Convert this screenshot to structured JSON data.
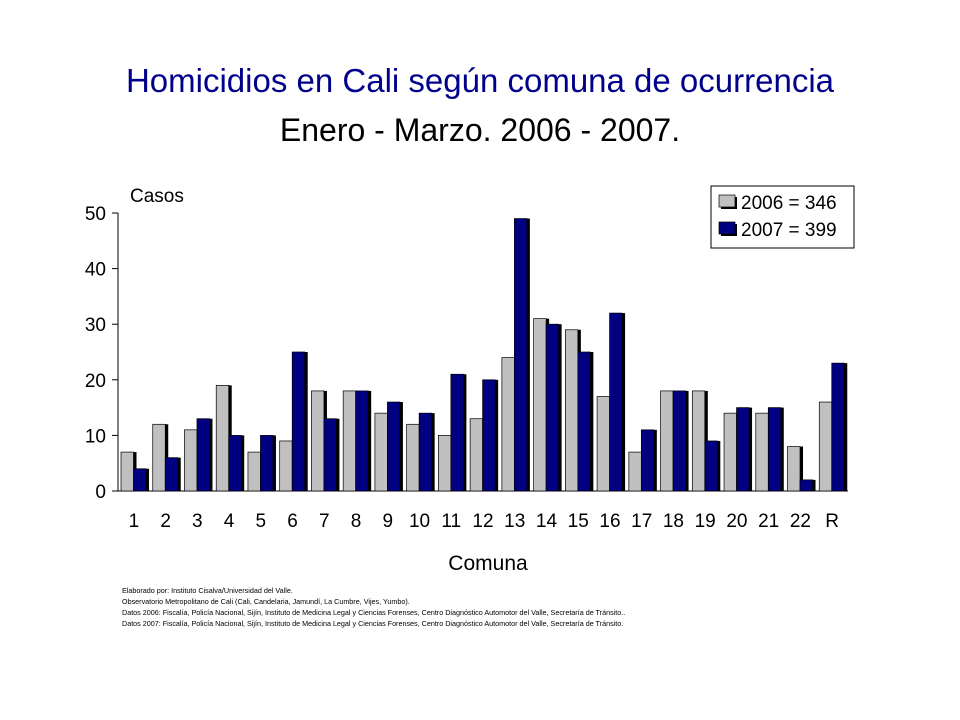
{
  "title": "Homicidios en Cali según comuna de ocurrencia",
  "subtitle": "Enero - Marzo.  2006 - 2007.",
  "chart_data": {
    "type": "bar",
    "ylabel": "Casos",
    "xlabel": "Comuna",
    "ylim": [
      0,
      50
    ],
    "yticks": [
      0,
      10,
      20,
      30,
      40,
      50
    ],
    "grid": false,
    "legend_position": "top-right",
    "categories": [
      "1",
      "2",
      "3",
      "4",
      "5",
      "6",
      "7",
      "8",
      "9",
      "10",
      "11",
      "12",
      "13",
      "14",
      "15",
      "16",
      "17",
      "18",
      "19",
      "20",
      "21",
      "22",
      "R"
    ],
    "series": [
      {
        "name": "2006 = 346",
        "color": "#c0c0c0",
        "values": [
          7,
          12,
          11,
          19,
          7,
          9,
          18,
          18,
          14,
          12,
          10,
          13,
          24,
          31,
          29,
          17,
          7,
          18,
          18,
          14,
          14,
          8,
          16
        ]
      },
      {
        "name": "2007 = 399",
        "color": "#000080",
        "values": [
          4,
          6,
          13,
          10,
          10,
          25,
          13,
          18,
          16,
          14,
          21,
          20,
          49,
          30,
          25,
          32,
          11,
          18,
          9,
          15,
          15,
          2,
          23
        ]
      }
    ]
  },
  "footnotes": [
    "Elaborado por: Instituto Cisalva/Universidad del Valle.",
    "Observatorio Metropolitano de Cali (Cali, Candelaria, Jamundí, La Cumbre, Vijes, Yumbo).",
    "Datos 2006: Fiscalía, Policía Nacional, Sijín,  Instituto de Medicina Legal  y Ciencias Forenses, Centro Diagnóstico Automotor del Valle, Secretaría de Tránsito..",
    "Datos 2007: Fiscalía, Policía Nacional, Sijín, Instituto de Medicina Legal  y Ciencias Forenses, Centro Diagnóstico Automotor del Valle, Secretaría de Tránsito."
  ]
}
